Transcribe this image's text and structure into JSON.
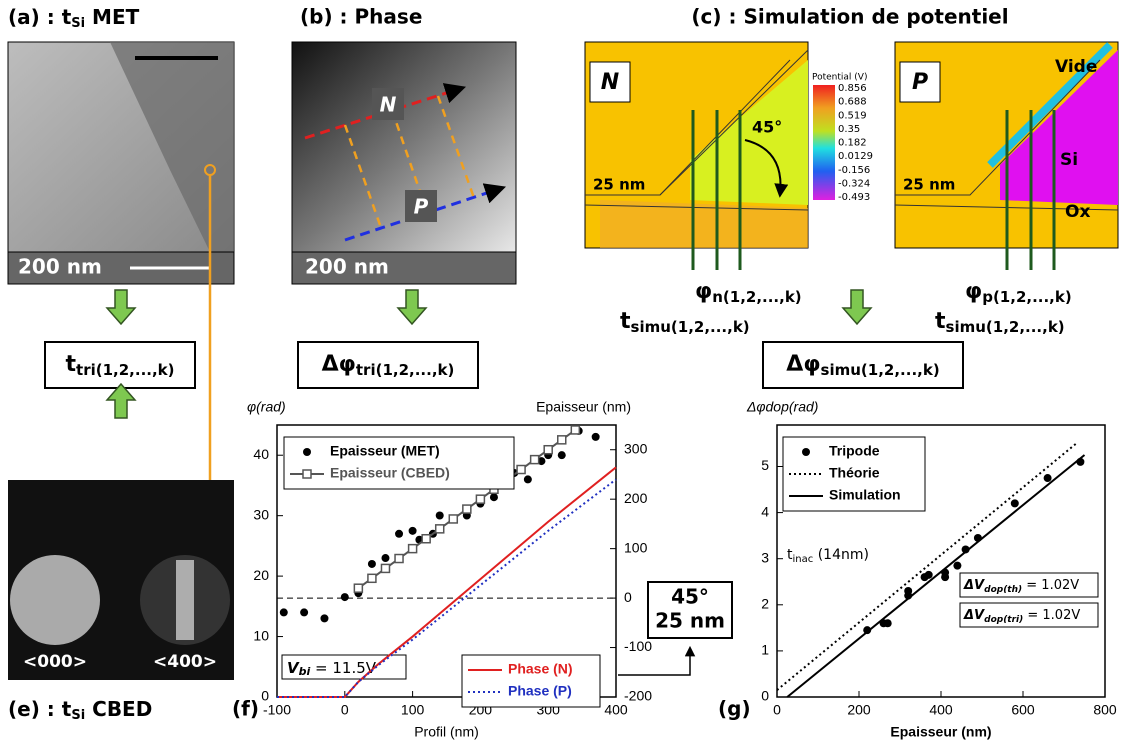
{
  "panel_a": {
    "label": "(a) : t",
    "label_sub": "Si",
    "label_rest": " MET",
    "scale": "200 nm"
  },
  "panel_b": {
    "label": "(b) : Phase",
    "n": "N",
    "p": "P",
    "scale": "200 nm"
  },
  "panel_c": {
    "label": "(c) : Simulation de potentiel",
    "n": "N",
    "p": "P",
    "angle": "45°",
    "thickness_n": "25 nm",
    "thickness_p": "25 nm",
    "vide": "Vide",
    "si": "Si",
    "ox": "Ox",
    "colorbar_title": "Potential (V)",
    "colorbar_values": [
      0.856,
      0.688,
      0.519,
      0.35,
      0.182,
      0.0129,
      -0.156,
      -0.324,
      -0.493
    ],
    "phi_n": {
      "symbol": "φ",
      "sub": "n(1,2,...,k)"
    },
    "t_simu_n": {
      "symbol": "t",
      "sub": "simu(1,2,...,k)"
    },
    "phi_p": {
      "symbol": "φ",
      "sub": "p(1,2,...,k)"
    },
    "t_simu_p": {
      "symbol": "t",
      "sub": "simu(1,2,...,k)"
    }
  },
  "box_t_tri": {
    "symbol": "t",
    "sub": "tri(1,2,...,k)"
  },
  "box_dphi_tri": {
    "symbol": "Δφ",
    "sub": "tri(1,2,...,k)"
  },
  "box_dphi_simu": {
    "symbol": "Δφ",
    "sub": "simu(1,2,...,k)"
  },
  "panel_e": {
    "label": "(e) : t",
    "label_sub": "Si",
    "label_rest": " CBED",
    "spot_000": "<000>",
    "spot_400": "<400>"
  },
  "panel_f": {
    "label": "(f)",
    "callout": [
      "45°",
      "25 nm"
    ]
  },
  "panel_g": {
    "label": "(g)"
  },
  "chart_data": [
    {
      "type": "line",
      "y_label": "φ(rad)",
      "y2_label": "Epaisseur (nm)",
      "x_label": "Profil (nm)",
      "xlim": [
        -100,
        400
      ],
      "xticks": [
        -100,
        0,
        100,
        200,
        300,
        400
      ],
      "ylim": [
        0,
        45
      ],
      "yticks": [
        0,
        10,
        20,
        30,
        40
      ],
      "y2lim": [
        -200,
        350
      ],
      "y2ticks": [
        -200,
        -100,
        0,
        100,
        200,
        300
      ],
      "reference_line": {
        "axis": "y2",
        "value": 0
      },
      "annotation": {
        "text": "V",
        "sub": "bi",
        "rest": " = 11.5V"
      },
      "series": [
        {
          "name": "Epaisseur (MET)",
          "color": "#000000",
          "marker": "circle",
          "axis": "y2",
          "legend": "upper left",
          "x": [
            -90,
            -60,
            -30,
            0,
            20,
            40,
            60,
            80,
            100,
            110,
            130,
            140,
            180,
            200,
            220,
            250,
            270,
            290,
            300,
            320,
            345,
            370
          ],
          "values": [
            -29,
            -29,
            -41,
            2,
            10,
            69,
            81,
            130,
            136,
            118,
            130,
            167,
            167,
            191,
            204,
            253,
            240,
            277,
            289,
            289,
            338,
            326
          ]
        },
        {
          "name": "Epaisseur (CBED)",
          "color": "#555555",
          "marker": "open-square",
          "line": "solid",
          "axis": "y2",
          "legend": "upper left",
          "x": [
            20,
            40,
            60,
            80,
            100,
            120,
            140,
            160,
            180,
            200,
            220,
            240,
            260,
            280,
            300,
            320,
            340
          ],
          "values": [
            20,
            40,
            60,
            80,
            100,
            120,
            140,
            160,
            180,
            200,
            220,
            240,
            260,
            280,
            300,
            320,
            340
          ]
        },
        {
          "name": "Phase (N)",
          "color": "#e02020",
          "line": "solid",
          "legend": "lower right",
          "x": [
            -100,
            0,
            20,
            50,
            100,
            200,
            300,
            400
          ],
          "values": [
            0,
            0,
            2.5,
            5.5,
            10,
            19.5,
            29,
            38
          ]
        },
        {
          "name": "Phase (P)",
          "color": "#2030c0",
          "line": "dotted",
          "legend": "lower right",
          "x": [
            -100,
            0,
            20,
            50,
            100,
            200,
            300,
            400
          ],
          "values": [
            0,
            0,
            2.5,
            5.3,
            9.5,
            18.5,
            27.5,
            36
          ]
        }
      ]
    },
    {
      "type": "scatter",
      "y_label": "Δφdop(rad)",
      "x_label": "Epaisseur (nm)",
      "xlim": [
        0,
        800
      ],
      "xticks": [
        0,
        200,
        400,
        600,
        800
      ],
      "ylim": [
        0,
        5.9
      ],
      "yticks": [
        0,
        1,
        2,
        3,
        4,
        5
      ],
      "annotations": [
        {
          "text": "t",
          "sub": "inac",
          "rest": " (14nm)"
        },
        {
          "text": "ΔV",
          "sub": "dop(th)",
          "rest": " = 1.02V"
        },
        {
          "text": "ΔV",
          "sub": "dop(tri)",
          "rest": " = 1.02V"
        }
      ],
      "series": [
        {
          "name": "Tripode",
          "color": "#000000",
          "marker": "circle",
          "legend": "upper left",
          "x": [
            220,
            260,
            270,
            320,
            320,
            360,
            370,
            410,
            410,
            440,
            460,
            490,
            580,
            660,
            740
          ],
          "values": [
            1.45,
            1.6,
            1.6,
            2.2,
            2.3,
            2.6,
            2.65,
            2.6,
            2.7,
            2.85,
            3.2,
            3.45,
            4.2,
            4.75,
            5.1
          ]
        },
        {
          "name": "Théorie",
          "color": "#000000",
          "line": "dotted",
          "legend": "upper left",
          "x": [
            0,
            730
          ],
          "values": [
            0.15,
            5.5
          ]
        },
        {
          "name": "Simulation",
          "color": "#000000",
          "line": "solid",
          "legend": "upper left",
          "x": [
            25,
            750
          ],
          "values": [
            0,
            5.25
          ]
        }
      ]
    }
  ]
}
